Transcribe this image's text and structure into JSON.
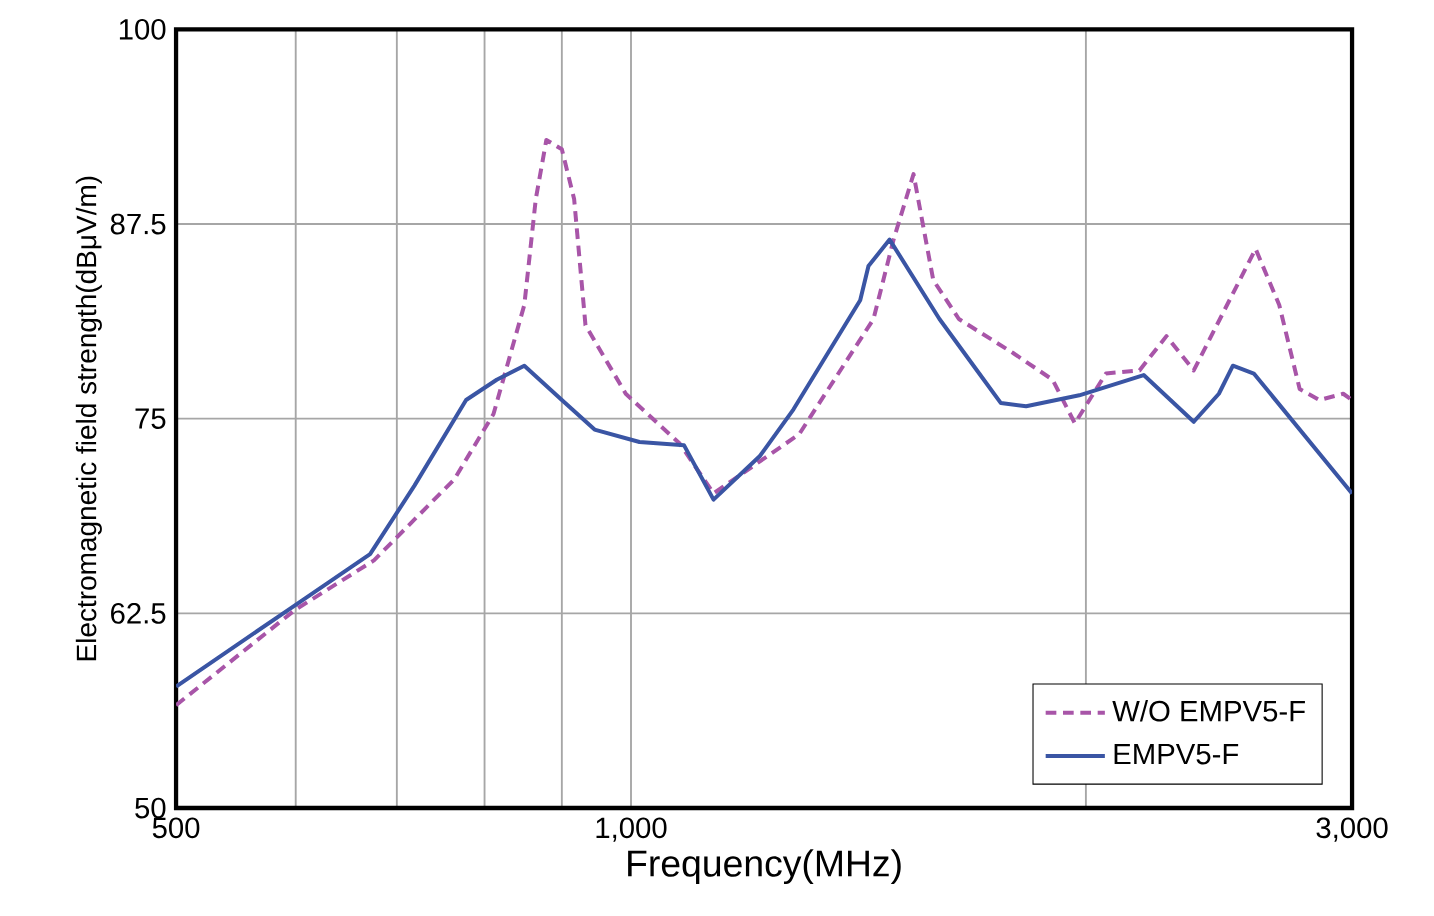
{
  "chart_data": {
    "type": "line",
    "xlabel": "Frequency(MHz)",
    "ylabel": "Electromagnetic field strength(dBμV/m)",
    "log": "x",
    "grid": true,
    "legend": "bottom right",
    "marker": "none",
    "xlim": [
      500,
      3000
    ],
    "ylim": [
      50,
      100
    ],
    "xticks": [
      {
        "value": 500,
        "label": "500"
      },
      {
        "value": 600,
        "label": null
      },
      {
        "value": 700,
        "label": null
      },
      {
        "value": 800,
        "label": null
      },
      {
        "value": 900,
        "label": null
      },
      {
        "value": 1000,
        "label": "1,000"
      },
      {
        "value": 2000,
        "label": null
      },
      {
        "value": 3000,
        "label": "3,000"
      }
    ],
    "yticks": [
      50,
      62.5,
      75,
      87.5,
      100
    ],
    "series": [
      {
        "name": "W/O EMPV5-F",
        "color": "#a855a8",
        "line_style": "dashed",
        "x": [
          500,
          599,
          676,
          764,
          811,
          850,
          865,
          879,
          900,
          917,
          933,
          992,
          1077,
          1134,
          1292,
          1447,
          1492,
          1538,
          1585,
          1648,
          1791,
          1901,
          1967,
          2062,
          2170,
          2261,
          2357,
          2590,
          2685,
          2770,
          2855,
          2960,
          3000
        ],
        "values": [
          56.6,
          62.7,
          65.9,
          71.1,
          75.3,
          82.3,
          89.1,
          92.9,
          92.3,
          89.1,
          81.0,
          76.6,
          73.4,
          70.2,
          74.0,
          81.4,
          86.5,
          90.7,
          83.9,
          81.4,
          79.2,
          77.5,
          74.7,
          77.9,
          78.1,
          80.3,
          78.1,
          85.9,
          82.3,
          76.9,
          76.2,
          76.6,
          76.2
        ]
      },
      {
        "name": "EMPV5-F",
        "color": "#3a55a4",
        "line_style": "solid",
        "x": [
          500,
          599,
          672,
          719,
          778,
          815,
          850,
          900,
          946,
          1013,
          1084,
          1134,
          1217,
          1281,
          1418,
          1436,
          1483,
          1600,
          1700,
          1757,
          1826,
          1980,
          2184,
          2357,
          2449,
          2502,
          2583,
          3000
        ],
        "values": [
          57.8,
          63.0,
          66.3,
          70.7,
          76.2,
          77.5,
          78.4,
          76.2,
          74.3,
          73.5,
          73.3,
          69.8,
          72.6,
          75.6,
          82.6,
          84.8,
          86.5,
          81.4,
          77.9,
          76.0,
          75.8,
          76.5,
          77.8,
          74.8,
          76.6,
          78.4,
          77.9,
          70.2
        ]
      }
    ]
  }
}
